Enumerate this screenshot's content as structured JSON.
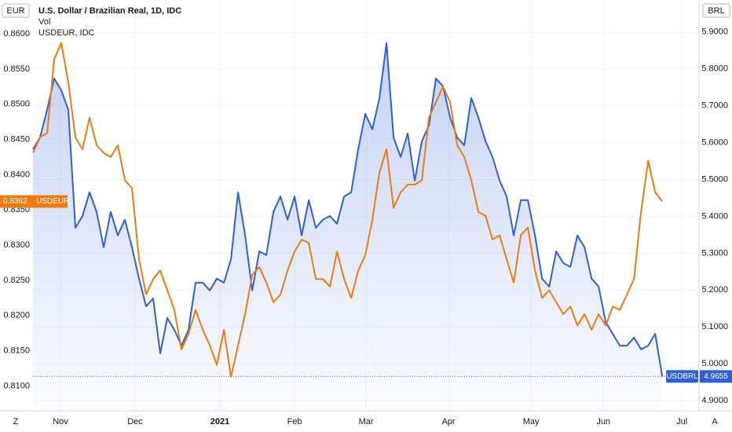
{
  "chart_data": {
    "type": "line",
    "title": "U.S. Dollar / Brazilian Real, 1D, IDC",
    "annotations": [
      "Vol",
      "USDEUR, IDC"
    ],
    "y_label": "EUR",
    "y2_label": "BRL",
    "xlim": [
      0,
      94.2
    ],
    "xticks": [
      {
        "value": 3.89,
        "label": "Nov"
      },
      {
        "value": 14.44,
        "label": "Dec"
      },
      {
        "value": 26.44,
        "label": "2021"
      },
      {
        "value": 37,
        "label": "Feb"
      },
      {
        "value": 47.11,
        "label": "Mar"
      },
      {
        "value": 58.78,
        "label": "Apr"
      },
      {
        "value": 70.44,
        "label": "May"
      },
      {
        "value": 80.67,
        "label": "Jun"
      },
      {
        "value": 91.78,
        "label": "Jul"
      }
    ],
    "ylim": [
      0.8066,
      0.8648
    ],
    "yticks": [
      {
        "value": 0.86,
        "label": "0.8600"
      },
      {
        "value": 0.855,
        "label": "0.8550"
      },
      {
        "value": 0.85,
        "label": "0.8500"
      },
      {
        "value": 0.845,
        "label": "0.8450"
      },
      {
        "value": 0.84,
        "label": "0.8400"
      },
      {
        "value": 0.835,
        "label": "0.8350"
      },
      {
        "value": 0.83,
        "label": "0.8300"
      },
      {
        "value": 0.825,
        "label": "0.8250"
      },
      {
        "value": 0.82,
        "label": "0.8200"
      },
      {
        "value": 0.815,
        "label": "0.8150"
      },
      {
        "value": 0.81,
        "label": "0.8100"
      }
    ],
    "y2lim": [
      4.8745,
      5.987
    ],
    "y2ticks": [
      {
        "value": 5.9,
        "label": "5.9000"
      },
      {
        "value": 5.8,
        "label": "5.8000"
      },
      {
        "value": 5.7,
        "label": "5.7000"
      },
      {
        "value": 5.6,
        "label": "5.6000"
      },
      {
        "value": 5.5,
        "label": "5.5000"
      },
      {
        "value": 5.4,
        "label": "5.4000"
      },
      {
        "value": 5.3,
        "label": "5.3000"
      },
      {
        "value": 5.2,
        "label": "5.2000"
      },
      {
        "value": 5.1,
        "label": "5.1000"
      },
      {
        "value": 5.0,
        "label": "5.0000"
      },
      {
        "value": 4.9,
        "label": "4.9000"
      }
    ],
    "grid": true,
    "series": [
      {
        "name": "USDBRL",
        "color": "#2f5fd8",
        "axis": "y2",
        "area": true,
        "values": [
          5.582,
          5.614,
          5.689,
          5.774,
          5.742,
          5.689,
          5.369,
          5.401,
          5.465,
          5.412,
          5.316,
          5.412,
          5.348,
          5.391,
          5.316,
          5.231,
          5.156,
          5.177,
          5.028,
          5.124,
          5.092,
          5.049,
          5.092,
          5.22,
          5.22,
          5.199,
          5.231,
          5.22,
          5.284,
          5.465,
          5.348,
          5.199,
          5.305,
          5.295,
          5.412,
          5.454,
          5.391,
          5.454,
          5.348,
          5.444,
          5.369,
          5.391,
          5.401,
          5.38,
          5.454,
          5.465,
          5.582,
          5.678,
          5.636,
          5.721,
          5.87,
          5.614,
          5.561,
          5.625,
          5.497,
          5.604,
          5.646,
          5.774,
          5.753,
          5.668,
          5.614,
          5.593,
          5.721,
          5.668,
          5.604,
          5.561,
          5.497,
          5.454,
          5.348,
          5.444,
          5.444,
          5.348,
          5.231,
          5.209,
          5.305,
          5.273,
          5.263,
          5.348,
          5.316,
          5.231,
          5.209,
          5.113,
          5.081,
          5.049,
          5.049,
          5.071,
          5.039,
          5.049,
          5.081,
          4.9655
        ]
      },
      {
        "name": "USDEUR",
        "color": "#f07a12",
        "values": [
          0.8431,
          0.8453,
          0.8459,
          0.8564,
          0.8587,
          0.8531,
          0.8453,
          0.8436,
          0.8481,
          0.8442,
          0.8431,
          0.8425,
          0.8442,
          0.8392,
          0.8381,
          0.828,
          0.823,
          0.8252,
          0.8264,
          0.8236,
          0.8208,
          0.8152,
          0.8174,
          0.8208,
          0.818,
          0.8158,
          0.813,
          0.818,
          0.8113,
          0.8158,
          0.8202,
          0.8258,
          0.8269,
          0.8247,
          0.8219,
          0.823,
          0.8264,
          0.8291,
          0.8308,
          0.8303,
          0.8252,
          0.8252,
          0.8241,
          0.8291,
          0.8252,
          0.8225,
          0.8264,
          0.8286,
          0.8336,
          0.8403,
          0.8436,
          0.8353,
          0.8375,
          0.8386,
          0.8386,
          0.8392,
          0.8481,
          0.8503,
          0.8525,
          0.8503,
          0.8442,
          0.8425,
          0.8392,
          0.8347,
          0.8342,
          0.8308,
          0.8314,
          0.828,
          0.8247,
          0.8314,
          0.8325,
          0.8264,
          0.8225,
          0.8236,
          0.8219,
          0.8202,
          0.8213,
          0.8186,
          0.8202,
          0.818,
          0.8202,
          0.8186,
          0.8213,
          0.8208,
          0.823,
          0.8252,
          0.8347,
          0.842,
          0.8375,
          0.8362
        ]
      }
    ]
  },
  "controls": {
    "left": "Z",
    "right": "A"
  }
}
